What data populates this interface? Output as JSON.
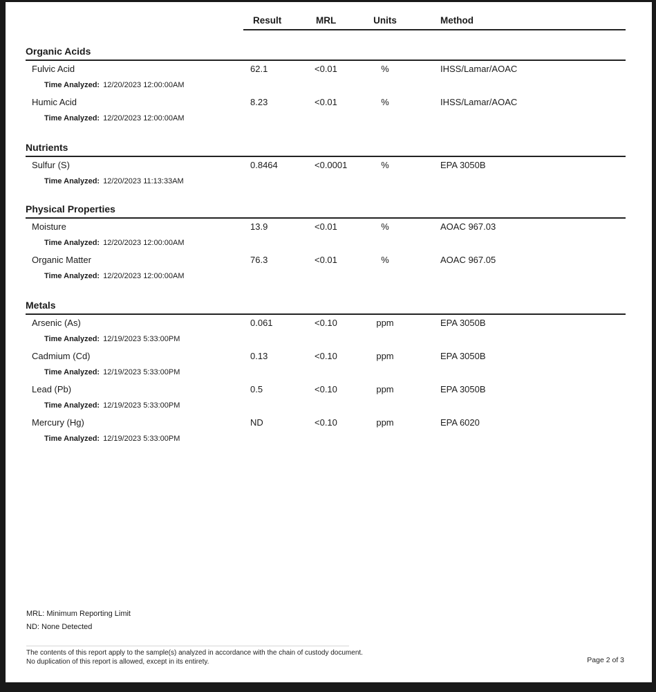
{
  "table_header": {
    "result": "Result",
    "mrl": "MRL",
    "units": "Units",
    "method": "Method"
  },
  "sections": [
    {
      "title": "Organic Acids",
      "rows": [
        {
          "analyte": "Fulvic Acid",
          "result": "62.1",
          "mrl": "<0.01",
          "units": "%",
          "method": "IHSS/Lamar/AOAC",
          "time_label": "Time Analyzed:",
          "time_analyzed": "12/20/2023 12:00:00AM"
        },
        {
          "analyte": "Humic Acid",
          "result": "8.23",
          "mrl": "<0.01",
          "units": "%",
          "method": "IHSS/Lamar/AOAC",
          "time_label": "Time Analyzed:",
          "time_analyzed": "12/20/2023 12:00:00AM"
        }
      ]
    },
    {
      "title": "Nutrients",
      "rows": [
        {
          "analyte": "Sulfur (S)",
          "result": "0.8464",
          "mrl": "<0.0001",
          "units": "%",
          "method": "EPA 3050B",
          "time_label": "Time Analyzed:",
          "time_analyzed": "12/20/2023 11:13:33AM"
        }
      ]
    },
    {
      "title": "Physical Properties",
      "rows": [
        {
          "analyte": "Moisture",
          "result": "13.9",
          "mrl": "<0.01",
          "units": "%",
          "method": "AOAC 967.03",
          "time_label": "Time Analyzed:",
          "time_analyzed": "12/20/2023 12:00:00AM"
        },
        {
          "analyte": "Organic Matter",
          "result": "76.3",
          "mrl": "<0.01",
          "units": "%",
          "method": "AOAC 967.05",
          "time_label": "Time Analyzed:",
          "time_analyzed": "12/20/2023 12:00:00AM"
        }
      ]
    },
    {
      "title": "Metals",
      "rows": [
        {
          "analyte": "Arsenic (As)",
          "result": "0.061",
          "mrl": "<0.10",
          "units": "ppm",
          "method": "EPA 3050B",
          "time_label": "Time Analyzed:",
          "time_analyzed": "12/19/2023 5:33:00PM"
        },
        {
          "analyte": "Cadmium (Cd)",
          "result": "0.13",
          "mrl": "<0.10",
          "units": "ppm",
          "method": "EPA 3050B",
          "time_label": "Time Analyzed:",
          "time_analyzed": "12/19/2023 5:33:00PM"
        },
        {
          "analyte": "Lead (Pb)",
          "result": "0.5",
          "mrl": "<0.10",
          "units": "ppm",
          "method": "EPA 3050B",
          "time_label": "Time Analyzed:",
          "time_analyzed": "12/19/2023 5:33:00PM"
        },
        {
          "analyte": "Mercury (Hg)",
          "result": "ND",
          "mrl": "<0.10",
          "units": "ppm",
          "method": "EPA 6020",
          "time_label": "Time Analyzed:",
          "time_analyzed": "12/19/2023 5:33:00PM"
        }
      ]
    }
  ],
  "legend": {
    "mrl_definition": "MRL: Minimum Reporting Limit",
    "nd_definition": "ND: None Detected"
  },
  "disclaimer": {
    "line1": "The contents of this report apply to the sample(s) analyzed in accordance with the chain of custody document.",
    "line2": "No duplication of this report is allowed, except in its entirety."
  },
  "page_number": "Page 2 of 3"
}
